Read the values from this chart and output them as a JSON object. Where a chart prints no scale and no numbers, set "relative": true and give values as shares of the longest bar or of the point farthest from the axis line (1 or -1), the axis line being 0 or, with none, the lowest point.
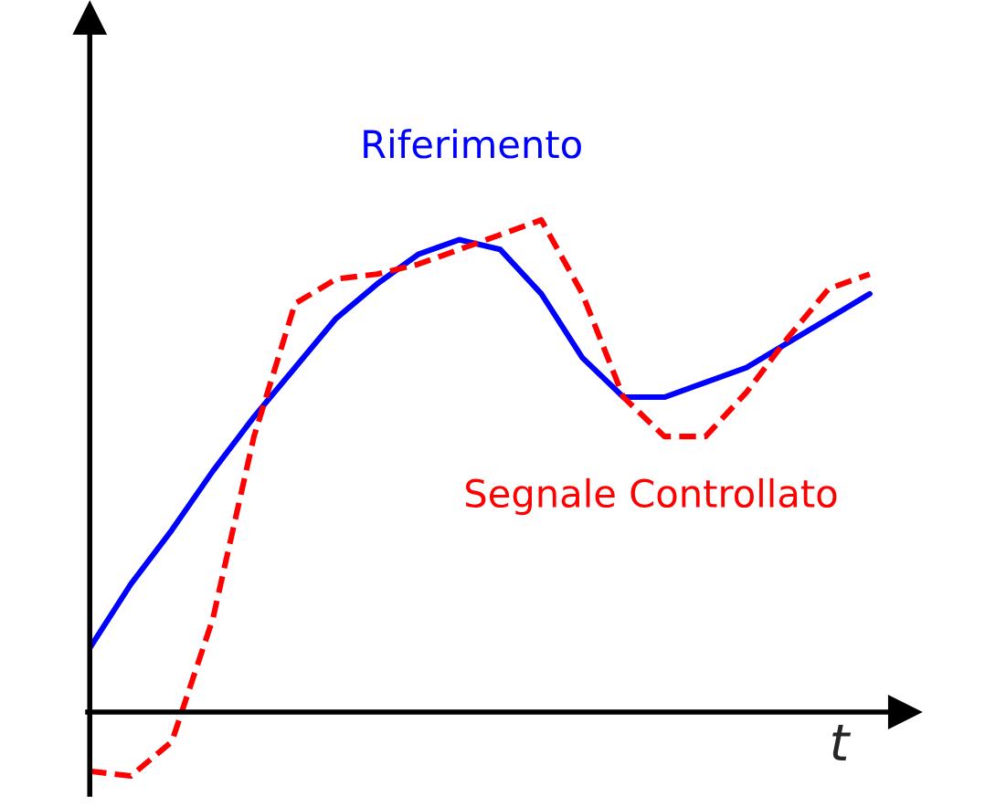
{
  "chart_data": {
    "type": "line",
    "relative": true,
    "xlabel": "t",
    "legend": false,
    "categories": [
      null,
      null,
      null,
      null,
      null,
      null,
      null,
      null,
      null,
      null,
      null,
      null,
      null,
      null,
      null,
      null,
      null,
      null,
      null,
      null
    ],
    "series": [
      {
        "name": "Riferimento",
        "color": "#0000ff",
        "line_style": "solid",
        "values": [
          0.13,
          0.26,
          0.37,
          0.49,
          0.6,
          0.7,
          0.8,
          0.87,
          0.93,
          0.96,
          0.94,
          0.85,
          0.72,
          0.64,
          0.64,
          0.67,
          0.7,
          0.75,
          0.8,
          0.85
        ]
      },
      {
        "name": "Segnale Controllato",
        "color": "#ff0000",
        "line_style": "dashed",
        "values": [
          -0.12,
          -0.13,
          -0.06,
          0.19,
          0.56,
          0.83,
          0.88,
          0.89,
          0.91,
          0.94,
          0.97,
          1,
          0.85,
          0.64,
          0.56,
          0.56,
          0.65,
          0.76,
          0.86,
          0.89
        ]
      }
    ]
  }
}
